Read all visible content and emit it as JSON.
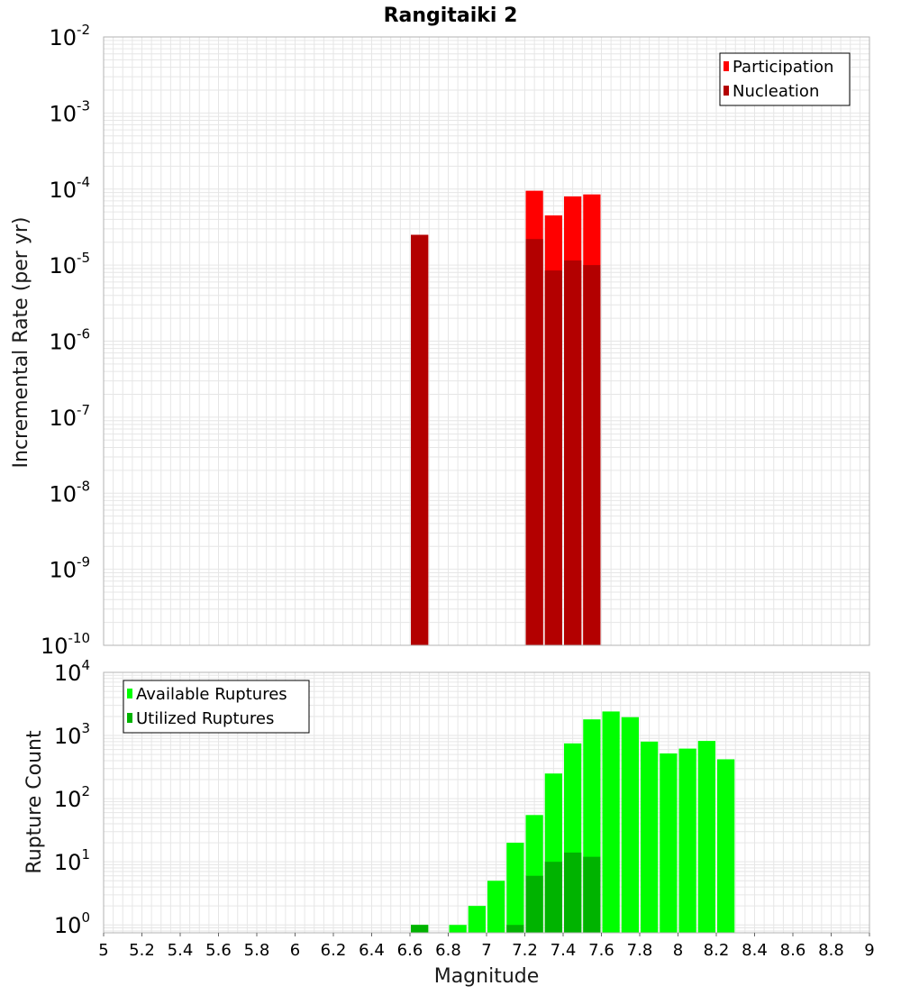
{
  "title": "Rangitaiki 2",
  "colors": {
    "participation": "#ff0000",
    "nucleation": "#b30000",
    "available": "#00ff00",
    "utilized": "#00b300",
    "grid": "#e6e6e6",
    "frame": "#b3b3b3"
  },
  "chart_data": [
    {
      "type": "bar",
      "title": "Rangitaiki 2",
      "xlabel": "",
      "ylabel": "Incremental Rate (per yr)",
      "xlim": [
        5,
        9
      ],
      "ylim": [
        1e-10,
        0.01
      ],
      "yscale": "log",
      "grid": true,
      "bin_width": 0.1,
      "legend_position": "top-right",
      "legend": [
        "Participation",
        "Nucleation"
      ],
      "series": [
        {
          "name": "Participation",
          "x": [
            6.65,
            7.25,
            7.35,
            7.45,
            7.55
          ],
          "values": [
            2.5e-05,
            9.5e-05,
            4.5e-05,
            8e-05,
            8.5e-05
          ]
        },
        {
          "name": "Nucleation",
          "x": [
            6.65,
            7.25,
            7.35,
            7.45,
            7.55
          ],
          "values": [
            2.5e-05,
            2.2e-05,
            8.5e-06,
            1.15e-05,
            1e-05
          ]
        }
      ],
      "y_ticks": [
        {
          "base": "10",
          "exp": "-2"
        },
        {
          "base": "10",
          "exp": "-3"
        },
        {
          "base": "10",
          "exp": "-4"
        },
        {
          "base": "10",
          "exp": "-5"
        },
        {
          "base": "10",
          "exp": "-6"
        },
        {
          "base": "10",
          "exp": "-7"
        },
        {
          "base": "10",
          "exp": "-8"
        },
        {
          "base": "10",
          "exp": "-9"
        },
        {
          "base": "10",
          "exp": "-10"
        }
      ]
    },
    {
      "type": "bar",
      "title": "",
      "xlabel": "Magnitude",
      "ylabel": "Rupture Count",
      "xlim": [
        5,
        9
      ],
      "ylim": [
        0.75,
        10000
      ],
      "yscale": "log",
      "grid": true,
      "bin_width": 0.1,
      "legend_position": "top-left",
      "legend": [
        "Available Ruptures",
        "Utilized Ruptures"
      ],
      "series": [
        {
          "name": "Available Ruptures",
          "x": [
            6.65,
            6.85,
            6.95,
            7.05,
            7.15,
            7.25,
            7.35,
            7.45,
            7.55,
            7.65,
            7.75,
            7.85,
            7.95,
            8.05,
            8.15,
            8.25
          ],
          "values": [
            1,
            1,
            2,
            5,
            20,
            55,
            250,
            750,
            1800,
            2400,
            1950,
            800,
            520,
            620,
            820,
            420
          ]
        },
        {
          "name": "Utilized Ruptures",
          "x": [
            6.65,
            7.15,
            7.25,
            7.35,
            7.45,
            7.55
          ],
          "values": [
            1,
            1,
            6,
            10,
            14,
            12
          ]
        }
      ],
      "y_ticks": [
        {
          "base": "10",
          "exp": "4"
        },
        {
          "base": "10",
          "exp": "3"
        },
        {
          "base": "10",
          "exp": "2"
        },
        {
          "base": "10",
          "exp": "1"
        },
        {
          "base": "10",
          "exp": "0"
        }
      ],
      "x_ticks": [
        "5",
        "5.2",
        "5.4",
        "5.6",
        "5.8",
        "6",
        "6.2",
        "6.4",
        "6.6",
        "6.8",
        "7",
        "7.2",
        "7.4",
        "7.6",
        "7.8",
        "8",
        "8.2",
        "8.4",
        "8.6",
        "8.8",
        "9"
      ]
    }
  ]
}
